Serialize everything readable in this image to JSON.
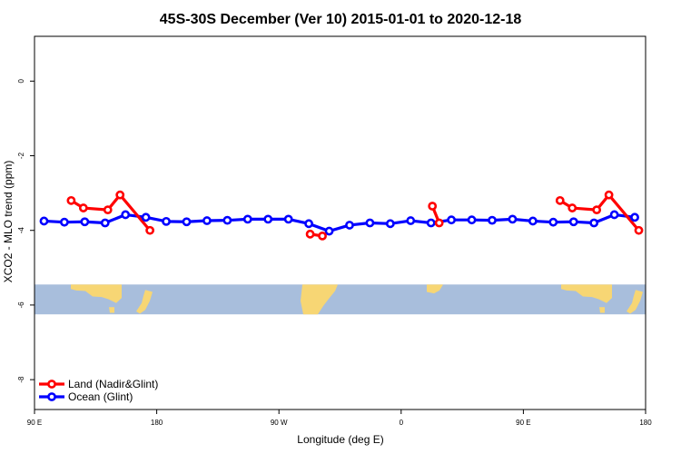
{
  "chart_data": {
    "type": "line",
    "title": "45S-30S December (Ver 10)   2015-01-01 to 2020-12-18",
    "xlabel": "Longitude (deg E)",
    "ylabel": "XCO2 - MLO trend (ppm)",
    "xlim": [
      90,
      540
    ],
    "ylim": [
      -8.8,
      1.2
    ],
    "x_ticks": [
      {
        "value": 90,
        "label": "90 E"
      },
      {
        "value": 180,
        "label": "180"
      },
      {
        "value": 270,
        "label": "90 W"
      },
      {
        "value": 360,
        "label": "0"
      },
      {
        "value": 450,
        "label": "90 E"
      },
      {
        "value": 540,
        "label": "180"
      }
    ],
    "y_ticks": [
      {
        "value": 0,
        "label": "0"
      },
      {
        "value": -2,
        "label": "-2"
      },
      {
        "value": -4,
        "label": "-4"
      },
      {
        "value": -6,
        "label": "-6"
      },
      {
        "value": -8,
        "label": "-8"
      }
    ],
    "map_band": {
      "y_top": -5.45,
      "y_bottom": -6.25,
      "ocean_color": "#a8bedc",
      "land_color": "#f7d674"
    },
    "legend": {
      "position": "bottom-left"
    },
    "series": [
      {
        "name": "Land (Nadir&Glint)",
        "color": "#ff0000",
        "segments": [
          [
            {
              "x": 117,
              "y": -3.2
            },
            {
              "x": 126,
              "y": -3.4
            },
            {
              "x": 144,
              "y": -3.45
            },
            {
              "x": 153,
              "y": -3.05
            },
            {
              "x": 175,
              "y": -4.0
            }
          ],
          [
            {
              "x": 293,
              "y": -4.1
            },
            {
              "x": 302,
              "y": -4.15
            }
          ],
          [
            {
              "x": 383,
              "y": -3.35
            },
            {
              "x": 388,
              "y": -3.8
            }
          ],
          [
            {
              "x": 477,
              "y": -3.2
            },
            {
              "x": 486,
              "y": -3.4
            },
            {
              "x": 504,
              "y": -3.45
            },
            {
              "x": 513,
              "y": -3.05
            },
            {
              "x": 535,
              "y": -4.0
            }
          ]
        ]
      },
      {
        "name": "Ocean (Glint)",
        "color": "#0000ff",
        "segments": [
          [
            {
              "x": 97,
              "y": -3.75
            },
            {
              "x": 112,
              "y": -3.78
            },
            {
              "x": 127,
              "y": -3.77
            },
            {
              "x": 142,
              "y": -3.8
            },
            {
              "x": 157,
              "y": -3.58
            },
            {
              "x": 172,
              "y": -3.65
            },
            {
              "x": 187,
              "y": -3.76
            },
            {
              "x": 202,
              "y": -3.77
            },
            {
              "x": 217,
              "y": -3.74
            },
            {
              "x": 232,
              "y": -3.73
            },
            {
              "x": 247,
              "y": -3.7
            },
            {
              "x": 262,
              "y": -3.7
            },
            {
              "x": 277,
              "y": -3.7
            },
            {
              "x": 292,
              "y": -3.82
            },
            {
              "x": 307,
              "y": -4.02
            },
            {
              "x": 322,
              "y": -3.86
            },
            {
              "x": 337,
              "y": -3.8
            },
            {
              "x": 352,
              "y": -3.82
            },
            {
              "x": 367,
              "y": -3.74
            },
            {
              "x": 382,
              "y": -3.8
            },
            {
              "x": 397,
              "y": -3.72
            },
            {
              "x": 412,
              "y": -3.72
            },
            {
              "x": 427,
              "y": -3.73
            },
            {
              "x": 442,
              "y": -3.7
            },
            {
              "x": 457,
              "y": -3.75
            },
            {
              "x": 472,
              "y": -3.78
            },
            {
              "x": 487,
              "y": -3.77
            },
            {
              "x": 502,
              "y": -3.8
            },
            {
              "x": 517,
              "y": -3.58
            },
            {
              "x": 532,
              "y": -3.65
            }
          ]
        ]
      }
    ]
  }
}
